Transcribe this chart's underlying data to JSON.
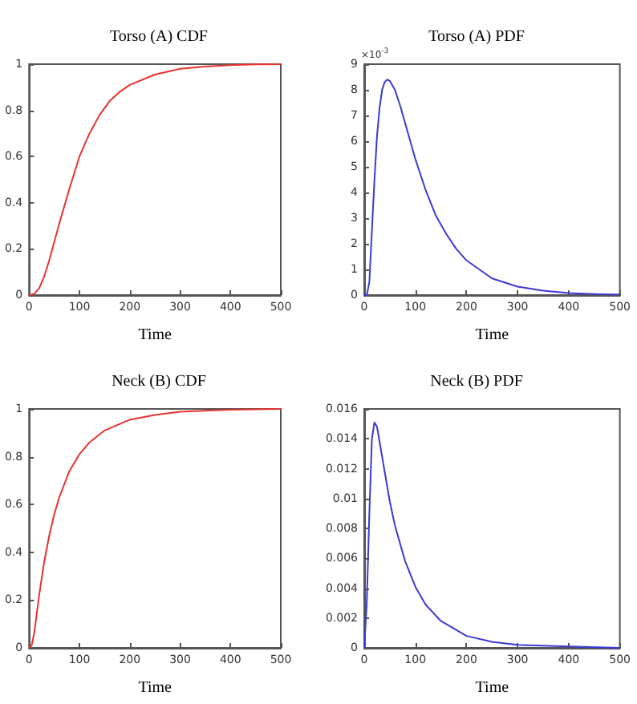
{
  "chart_data": [
    {
      "type": "line",
      "title": "Torso (A) CDF",
      "xlabel": "Time",
      "xlim": [
        0,
        500
      ],
      "xticks": [
        0,
        100,
        200,
        300,
        400,
        500
      ],
      "ylim": [
        0,
        1
      ],
      "yticks": [
        0,
        0.2,
        0.4,
        0.6,
        0.8,
        1
      ],
      "grid": false,
      "marker": "none",
      "line_style": "solid",
      "series": [
        {
          "color": "#e8322f",
          "x": [
            0,
            10,
            20,
            30,
            40,
            50,
            60,
            80,
            100,
            120,
            140,
            160,
            180,
            200,
            250,
            300,
            350,
            400,
            450,
            500
          ],
          "values": [
            0,
            0.005,
            0.03,
            0.08,
            0.15,
            0.23,
            0.31,
            0.46,
            0.6,
            0.7,
            0.78,
            0.84,
            0.88,
            0.91,
            0.955,
            0.98,
            0.99,
            0.996,
            0.999,
            1
          ]
        }
      ]
    },
    {
      "type": "line",
      "title": "Torso (A) PDF",
      "xlabel": "Time",
      "annotations": [
        "×10$^{-3}$"
      ],
      "xlim": [
        0,
        500
      ],
      "xticks": [
        0,
        100,
        200,
        300,
        400,
        500
      ],
      "ylim": [
        0,
        9
      ],
      "yticks": [
        0,
        1,
        2,
        3,
        4,
        5,
        6,
        7,
        8,
        9
      ],
      "grid": false,
      "marker": "none",
      "line_style": "solid",
      "series": [
        {
          "color": "#3a3ad6",
          "x": [
            0,
            5,
            10,
            15,
            20,
            25,
            30,
            35,
            40,
            45,
            50,
            60,
            70,
            80,
            100,
            120,
            140,
            160,
            180,
            200,
            250,
            300,
            350,
            400,
            450,
            500
          ],
          "values": [
            0,
            0,
            0.5,
            2.5,
            4.5,
            6.2,
            7.3,
            8,
            8.3,
            8.4,
            8.35,
            8,
            7.4,
            6.7,
            5.3,
            4.1,
            3.1,
            2.4,
            1.8,
            1.35,
            0.65,
            0.33,
            0.17,
            0.08,
            0.04,
            0.02
          ]
        }
      ]
    },
    {
      "type": "line",
      "title": "Neck (B) CDF",
      "xlabel": "Time",
      "xlim": [
        0,
        500
      ],
      "xticks": [
        0,
        100,
        200,
        300,
        400,
        500
      ],
      "ylim": [
        0,
        1
      ],
      "yticks": [
        0,
        0.2,
        0.4,
        0.6,
        0.8,
        1
      ],
      "grid": false,
      "marker": "none",
      "line_style": "solid",
      "series": [
        {
          "color": "#e8322f",
          "x": [
            0,
            5,
            10,
            15,
            20,
            30,
            40,
            50,
            60,
            80,
            100,
            120,
            150,
            200,
            250,
            300,
            400,
            500
          ],
          "values": [
            0,
            0.01,
            0.06,
            0.14,
            0.22,
            0.36,
            0.47,
            0.56,
            0.63,
            0.74,
            0.81,
            0.86,
            0.91,
            0.955,
            0.975,
            0.988,
            0.997,
            1
          ]
        }
      ]
    },
    {
      "type": "line",
      "title": "Neck (B) PDF",
      "xlabel": "Time",
      "xlim": [
        0,
        500
      ],
      "xticks": [
        0,
        100,
        200,
        300,
        400,
        500
      ],
      "ylim": [
        0,
        0.016
      ],
      "yticks": [
        0,
        0.002,
        0.004,
        0.006,
        0.008,
        0.01,
        0.012,
        0.014,
        0.016
      ],
      "grid": false,
      "marker": "none",
      "line_style": "solid",
      "series": [
        {
          "color": "#3a3ad6",
          "x": [
            0,
            5,
            10,
            15,
            20,
            25,
            30,
            40,
            50,
            60,
            80,
            100,
            120,
            150,
            200,
            250,
            300,
            400,
            500
          ],
          "values": [
            0,
            0.003,
            0.009,
            0.014,
            0.0151,
            0.0148,
            0.0138,
            0.0118,
            0.0098,
            0.0082,
            0.0058,
            0.0041,
            0.0029,
            0.0018,
            0.0008,
            0.0004,
            0.0002,
            0.0001,
            0
          ]
        }
      ]
    }
  ]
}
